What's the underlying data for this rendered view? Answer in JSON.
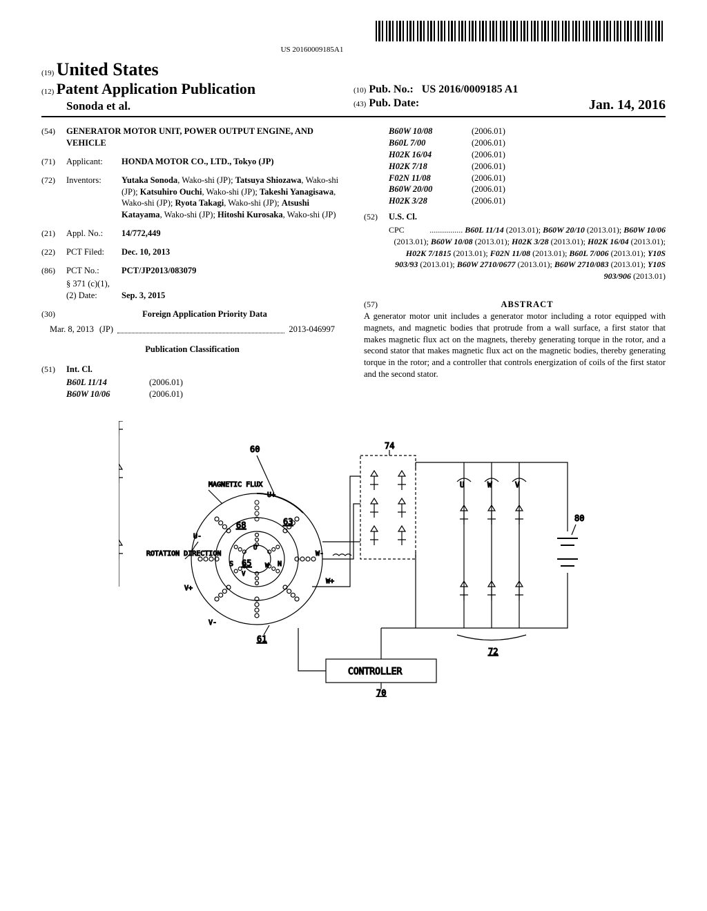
{
  "barcode_number": "US 20160009185A1",
  "header": {
    "code19": "(19)",
    "country": "United States",
    "code12": "(12)",
    "pubtype": "Patent Application Publication",
    "authors": "Sonoda et al.",
    "code10": "(10)",
    "pubno_label": "Pub. No.:",
    "pubno_value": "US 2016/0009185 A1",
    "code43": "(43)",
    "pubdate_label": "Pub. Date:",
    "pubdate_value": "Jan. 14, 2016"
  },
  "fields": {
    "title_code": "(54)",
    "title": "GENERATOR MOTOR UNIT, POWER OUTPUT ENGINE, AND VEHICLE",
    "applicant_code": "(71)",
    "applicant_label": "Applicant:",
    "applicant_value": "HONDA MOTOR CO., LTD., Tokyo (JP)",
    "inventors_code": "(72)",
    "inventors_label": "Inventors:",
    "inventors_value": "Yutaka Sonoda, Wako-shi (JP); Tatsuya Shiozawa, Wako-shi (JP); Katsuhiro Ouchi, Wako-shi (JP); Takeshi Yanagisawa, Wako-shi (JP); Ryota Takagi, Wako-shi (JP); Atsushi Katayama, Wako-shi (JP); Hitoshi Kurosaka, Wako-shi (JP)",
    "applno_code": "(21)",
    "applno_label": "Appl. No.:",
    "applno_value": "14/772,449",
    "pctfiled_code": "(22)",
    "pctfiled_label": "PCT Filed:",
    "pctfiled_value": "Dec. 10, 2013",
    "pctno_code": "(86)",
    "pctno_label": "PCT No.:",
    "pctno_value": "PCT/JP2013/083079",
    "s371_label": "§ 371 (c)(1),",
    "s371_date_label": "(2) Date:",
    "s371_date_value": "Sep. 3, 2015",
    "priority_code": "(30)",
    "priority_heading": "Foreign Application Priority Data",
    "priority_date": "Mar. 8, 2013",
    "priority_country": "(JP)",
    "priority_num": "2013-046997",
    "pubclass_heading": "Publication Classification",
    "intcl_code": "(51)",
    "intcl_label": "Int. Cl.",
    "uscl_code": "(52)",
    "uscl_label": "U.S. Cl.",
    "cpc_label": "CPC",
    "abstract_code": "(57)",
    "abstract_heading": "ABSTRACT",
    "abstract_text": "A generator motor unit includes a generator motor including a rotor equipped with magnets, and magnetic bodies that protrude from a wall surface, a first stator that makes magnetic flux act on the magnets, thereby generating torque in the rotor, and a second stator that makes magnetic flux act on the magnetic bodies, thereby generating torque in the rotor; and a controller that controls energization of coils of the first stator and the second stator."
  },
  "intcl_left": [
    {
      "code": "B60L 11/14",
      "ver": "(2006.01)"
    },
    {
      "code": "B60W 10/06",
      "ver": "(2006.01)"
    }
  ],
  "intcl_right": [
    {
      "code": "B60W 10/08",
      "ver": "(2006.01)"
    },
    {
      "code": "B60L 7/00",
      "ver": "(2006.01)"
    },
    {
      "code": "H02K 16/04",
      "ver": "(2006.01)"
    },
    {
      "code": "H02K 7/18",
      "ver": "(2006.01)"
    },
    {
      "code": "F02N 11/08",
      "ver": "(2006.01)"
    },
    {
      "code": "B60W 20/00",
      "ver": "(2006.01)"
    },
    {
      "code": "H02K 3/28",
      "ver": "(2006.01)"
    }
  ],
  "cpc": {
    "primary": "B60L 11/14",
    "primary_ver": "(2013.01)",
    "rest": "B60W 20/10 (2013.01); B60W 10/06 (2013.01); B60W 10/08 (2013.01); H02K 3/28 (2013.01); H02K 16/04 (2013.01); H02K 7/1815 (2013.01); F02N 11/08 (2013.01); B60L 7/006 (2013.01); Y10S 903/93 (2013.01); B60W 2710/0677 (2013.01); B60W 2710/083 (2013.01); Y10S 903/906 (2013.01)"
  },
  "figure": {
    "labels": {
      "l60": "60",
      "l74": "74",
      "l80": "80",
      "l72": "72",
      "l70": "70",
      "l68": "68",
      "l65": "65",
      "l63": "63",
      "l61": "61",
      "magflux": "MAGNETIC FLUX",
      "rotdir": "ROTATION DIRECTION",
      "controller": "CONTROLLER",
      "U": "U",
      "W": "W",
      "V": "V",
      "Up": "U+",
      "Um": "U-",
      "Wp": "W+",
      "Wm": "W-",
      "Vp": "V+",
      "Vm": "V-",
      "N": "N",
      "S": "S"
    }
  }
}
